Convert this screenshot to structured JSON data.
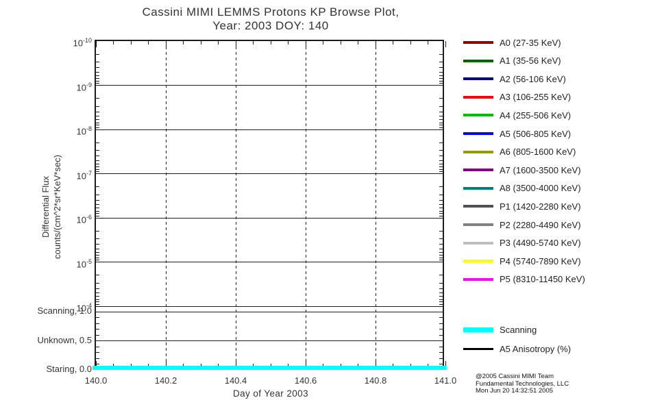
{
  "title": {
    "line1": "Cassini MIMI LEMMS Protons KP Browse Plot,",
    "line2": "Year: 2003 DOY: 140"
  },
  "chart_data": {
    "type": "line",
    "title": "Cassini MIMI LEMMS Protons KP Browse Plot, Year: 2003 DOY: 140",
    "xlabel": "Day of Year 2003",
    "ylabel": "Differential Flux counts/(cm^2*sr*KeV*sec)",
    "ylabel_lines": [
      "Differential Flux",
      "counts/(cm^2*sr*KeV*sec)"
    ],
    "xlim": [
      140.0,
      141.0
    ],
    "x_ticks": [
      140.0,
      140.2,
      140.4,
      140.6,
      140.8,
      141.0
    ],
    "x_tick_labels": [
      "140.0",
      "140.2",
      "140.4",
      "140.6",
      "140.8",
      "141.0"
    ],
    "y_axis": {
      "scale": "log10",
      "tick_exponents": [
        -10,
        -9,
        -8,
        -7,
        -6,
        -5,
        -4
      ],
      "tick_labels": [
        "10^-10",
        "10^-9",
        "10^-8",
        "10^-7",
        "10^-6",
        "10^-5",
        "10^-4"
      ],
      "orientation": "10^-10 at top, 10^-4 at bottom"
    },
    "mode_axis": {
      "tick_values": [
        1.0,
        0.5,
        0.0
      ],
      "tick_labels": [
        "Scanning, 1.0",
        "Unknown, 0.5",
        "Staring, 0.0"
      ]
    },
    "grid": {
      "horizontal": "solid",
      "vertical": "dashed"
    },
    "legend_position": "right",
    "series": [
      {
        "name": "Scanning",
        "color": "#00FFFF",
        "axis": "mode",
        "x": [
          140.0,
          141.0
        ],
        "values": [
          0.0,
          0.0
        ],
        "style": "thick horizontal line along bottom axis"
      }
    ],
    "note": "no flux data curves visible in panel"
  },
  "legend": {
    "items": [
      {
        "label": "A0 (27-35 KeV)",
        "color": "#8B0000"
      },
      {
        "label": "A1 (35-56 KeV)",
        "color": "#006400"
      },
      {
        "label": "A2 (56-106 KeV)",
        "color": "#00008B"
      },
      {
        "label": "A3 (106-255 KeV)",
        "color": "#FF0000"
      },
      {
        "label": "A4 (255-506 KeV)",
        "color": "#00C000"
      },
      {
        "label": "A5 (506-805 KeV)",
        "color": "#0000FF"
      },
      {
        "label": "A6 (805-1600 KeV)",
        "color": "#999900"
      },
      {
        "label": "A7 (1600-3500 KeV)",
        "color": "#800080"
      },
      {
        "label": "A8 (3500-4000 KeV)",
        "color": "#008080"
      },
      {
        "label": "P1 (1420-2280 KeV)",
        "color": "#505050"
      },
      {
        "label": "P2 (2280-4490 KeV)",
        "color": "#808080"
      },
      {
        "label": "P3 (4490-5740 KeV)",
        "color": "#BFBFBF"
      },
      {
        "label": "P4 (5740-7890 KeV)",
        "color": "#FFFF00"
      },
      {
        "label": "P5 (8310-11450 KeV)",
        "color": "#FF00FF"
      }
    ]
  },
  "mode_legend": {
    "items": [
      {
        "label": "Scanning",
        "color": "#00FFFF",
        "line_thickness": "thick"
      },
      {
        "label": "A5 Anisotropy (%)",
        "color": "#000000",
        "line_thickness": "thin"
      }
    ]
  },
  "credit": {
    "line1": "@2005 Cassini MIMI Team",
    "line2": "Fundamental Technologies, LLC",
    "line3": "Mon Jun 20 14:32:51 2005"
  }
}
